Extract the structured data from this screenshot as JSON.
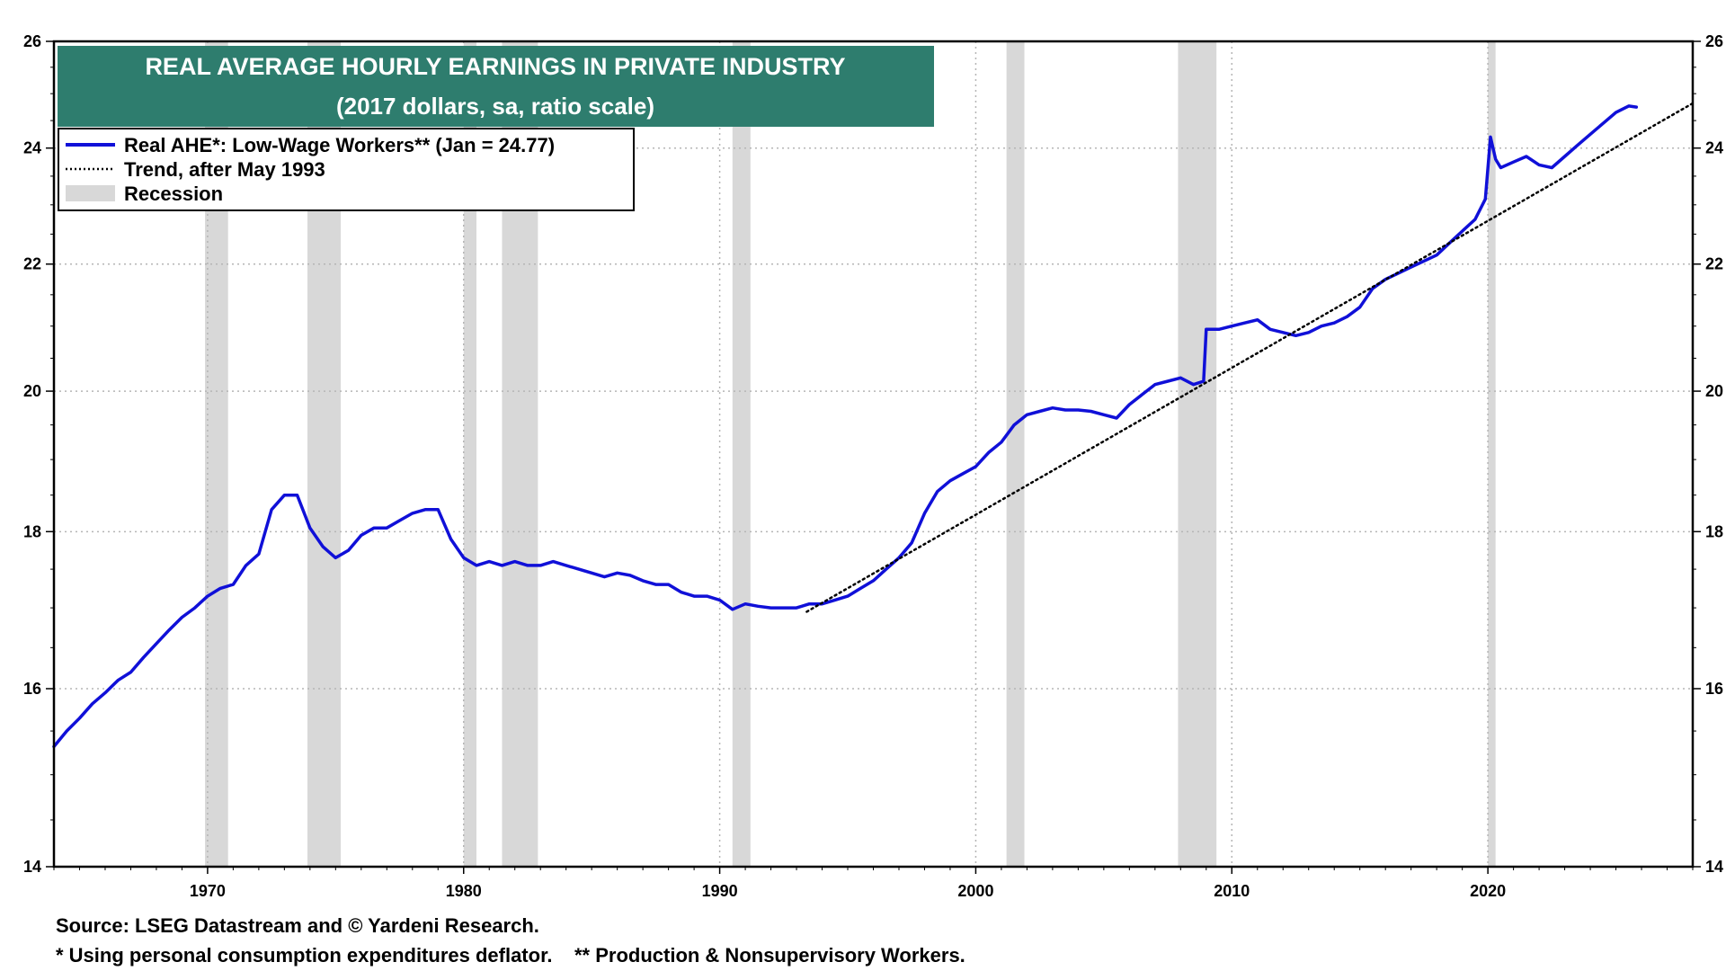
{
  "chart_data": {
    "type": "line",
    "title": "REAL AVERAGE HOURLY EARNINGS IN PRIVATE INDUSTRY",
    "subtitle": "(2017 dollars, sa, ratio scale)",
    "xlabel": "",
    "ylabel": "",
    "scale": "log",
    "xlim": [
      1964.0,
      2028.0
    ],
    "ylim": [
      14,
      26
    ],
    "x_ticks": [
      1970,
      1980,
      1990,
      2000,
      2010,
      2020
    ],
    "y_ticks": [
      14,
      16,
      18,
      20,
      22,
      24,
      26
    ],
    "grid": true,
    "legend_position": "top-left",
    "legend": [
      {
        "label": "Real AHE*: Low-Wage Workers** (Jan = 24.77)",
        "style": "solid",
        "color": "#1010d8"
      },
      {
        "label": "Trend, after May 1993",
        "style": "dotted",
        "color": "#000000"
      },
      {
        "label": "Recession",
        "style": "fill",
        "color": "#d8d8d8"
      }
    ],
    "recessions": [
      [
        1969.9,
        1970.8
      ],
      [
        1973.9,
        1975.2
      ],
      [
        1980.0,
        1980.5
      ],
      [
        1981.5,
        1982.9
      ],
      [
        1990.5,
        1991.2
      ],
      [
        2001.2,
        2001.9
      ],
      [
        2007.9,
        2009.4
      ],
      [
        2020.0,
        2020.3
      ]
    ],
    "series": [
      {
        "name": "Real AHE*: Low-Wage Workers** (Jan = 24.77)",
        "color": "#1010d8",
        "x": [
          1964.0,
          1964.5,
          1965.0,
          1965.5,
          1966.0,
          1966.5,
          1967.0,
          1967.5,
          1968.0,
          1968.5,
          1969.0,
          1969.5,
          1970.0,
          1970.5,
          1971.0,
          1971.5,
          1972.0,
          1972.5,
          1973.0,
          1973.5,
          1974.0,
          1974.5,
          1975.0,
          1975.5,
          1976.0,
          1976.5,
          1977.0,
          1977.5,
          1978.0,
          1978.5,
          1979.0,
          1979.5,
          1980.0,
          1980.5,
          1981.0,
          1981.5,
          1982.0,
          1982.5,
          1983.0,
          1983.5,
          1984.0,
          1984.5,
          1985.0,
          1985.5,
          1986.0,
          1986.5,
          1987.0,
          1987.5,
          1988.0,
          1988.5,
          1989.0,
          1989.5,
          1990.0,
          1990.5,
          1991.0,
          1991.5,
          1992.0,
          1992.5,
          1993.0,
          1993.5,
          1994.0,
          1994.5,
          1995.0,
          1995.5,
          1996.0,
          1996.5,
          1997.0,
          1997.5,
          1998.0,
          1998.5,
          1999.0,
          1999.5,
          2000.0,
          2000.5,
          2001.0,
          2001.5,
          2002.0,
          2002.5,
          2003.0,
          2003.5,
          2004.0,
          2004.5,
          2005.0,
          2005.5,
          2006.0,
          2006.5,
          2007.0,
          2007.5,
          2008.0,
          2008.5,
          2008.9,
          2009.0,
          2009.5,
          2010.0,
          2010.5,
          2011.0,
          2011.5,
          2012.0,
          2012.5,
          2013.0,
          2013.5,
          2014.0,
          2014.5,
          2015.0,
          2015.5,
          2016.0,
          2016.5,
          2017.0,
          2017.5,
          2018.0,
          2018.5,
          2019.0,
          2019.5,
          2019.9,
          2020.1,
          2020.3,
          2020.5,
          2021.0,
          2021.5,
          2022.0,
          2022.5,
          2023.0,
          2023.5,
          2024.0,
          2024.5,
          2025.0,
          2025.5,
          2025.8
        ],
        "values": [
          15.32,
          15.5,
          15.65,
          15.82,
          15.95,
          16.1,
          16.2,
          16.38,
          16.55,
          16.72,
          16.88,
          17.0,
          17.15,
          17.25,
          17.3,
          17.55,
          17.7,
          18.3,
          18.5,
          18.5,
          18.05,
          17.8,
          17.65,
          17.75,
          17.95,
          18.05,
          18.05,
          18.15,
          18.25,
          18.3,
          18.3,
          17.9,
          17.65,
          17.55,
          17.6,
          17.55,
          17.6,
          17.55,
          17.55,
          17.6,
          17.55,
          17.5,
          17.45,
          17.4,
          17.45,
          17.42,
          17.35,
          17.3,
          17.3,
          17.2,
          17.15,
          17.15,
          17.1,
          16.98,
          17.05,
          17.02,
          17.0,
          17.0,
          17.0,
          17.05,
          17.05,
          17.1,
          17.15,
          17.25,
          17.35,
          17.5,
          17.65,
          17.85,
          18.25,
          18.55,
          18.7,
          18.8,
          18.9,
          19.1,
          19.25,
          19.5,
          19.65,
          19.7,
          19.75,
          19.72,
          19.72,
          19.7,
          19.65,
          19.6,
          19.8,
          19.95,
          20.1,
          20.15,
          20.2,
          20.1,
          20.15,
          20.95,
          20.95,
          21.0,
          21.05,
          21.1,
          20.95,
          20.9,
          20.85,
          20.9,
          21.0,
          21.05,
          21.15,
          21.3,
          21.6,
          21.75,
          21.85,
          21.95,
          22.05,
          22.15,
          22.35,
          22.55,
          22.75,
          23.1,
          24.2,
          23.8,
          23.65,
          23.75,
          23.85,
          23.7,
          23.65,
          23.85,
          24.05,
          24.25,
          24.45,
          24.65,
          24.77,
          24.75
        ]
      },
      {
        "name": "Trend, after May 1993",
        "color": "#000000",
        "style": "dotted",
        "x": [
          1993.4,
          2028.0
        ],
        "values": [
          16.95,
          24.82
        ]
      }
    ]
  },
  "footnotes": {
    "source": "Source: LSEG Datastream and © Yardeni Research.",
    "notes": "* Using personal consumption expenditures deflator.    ** Production & Nonsupervisory Workers."
  }
}
